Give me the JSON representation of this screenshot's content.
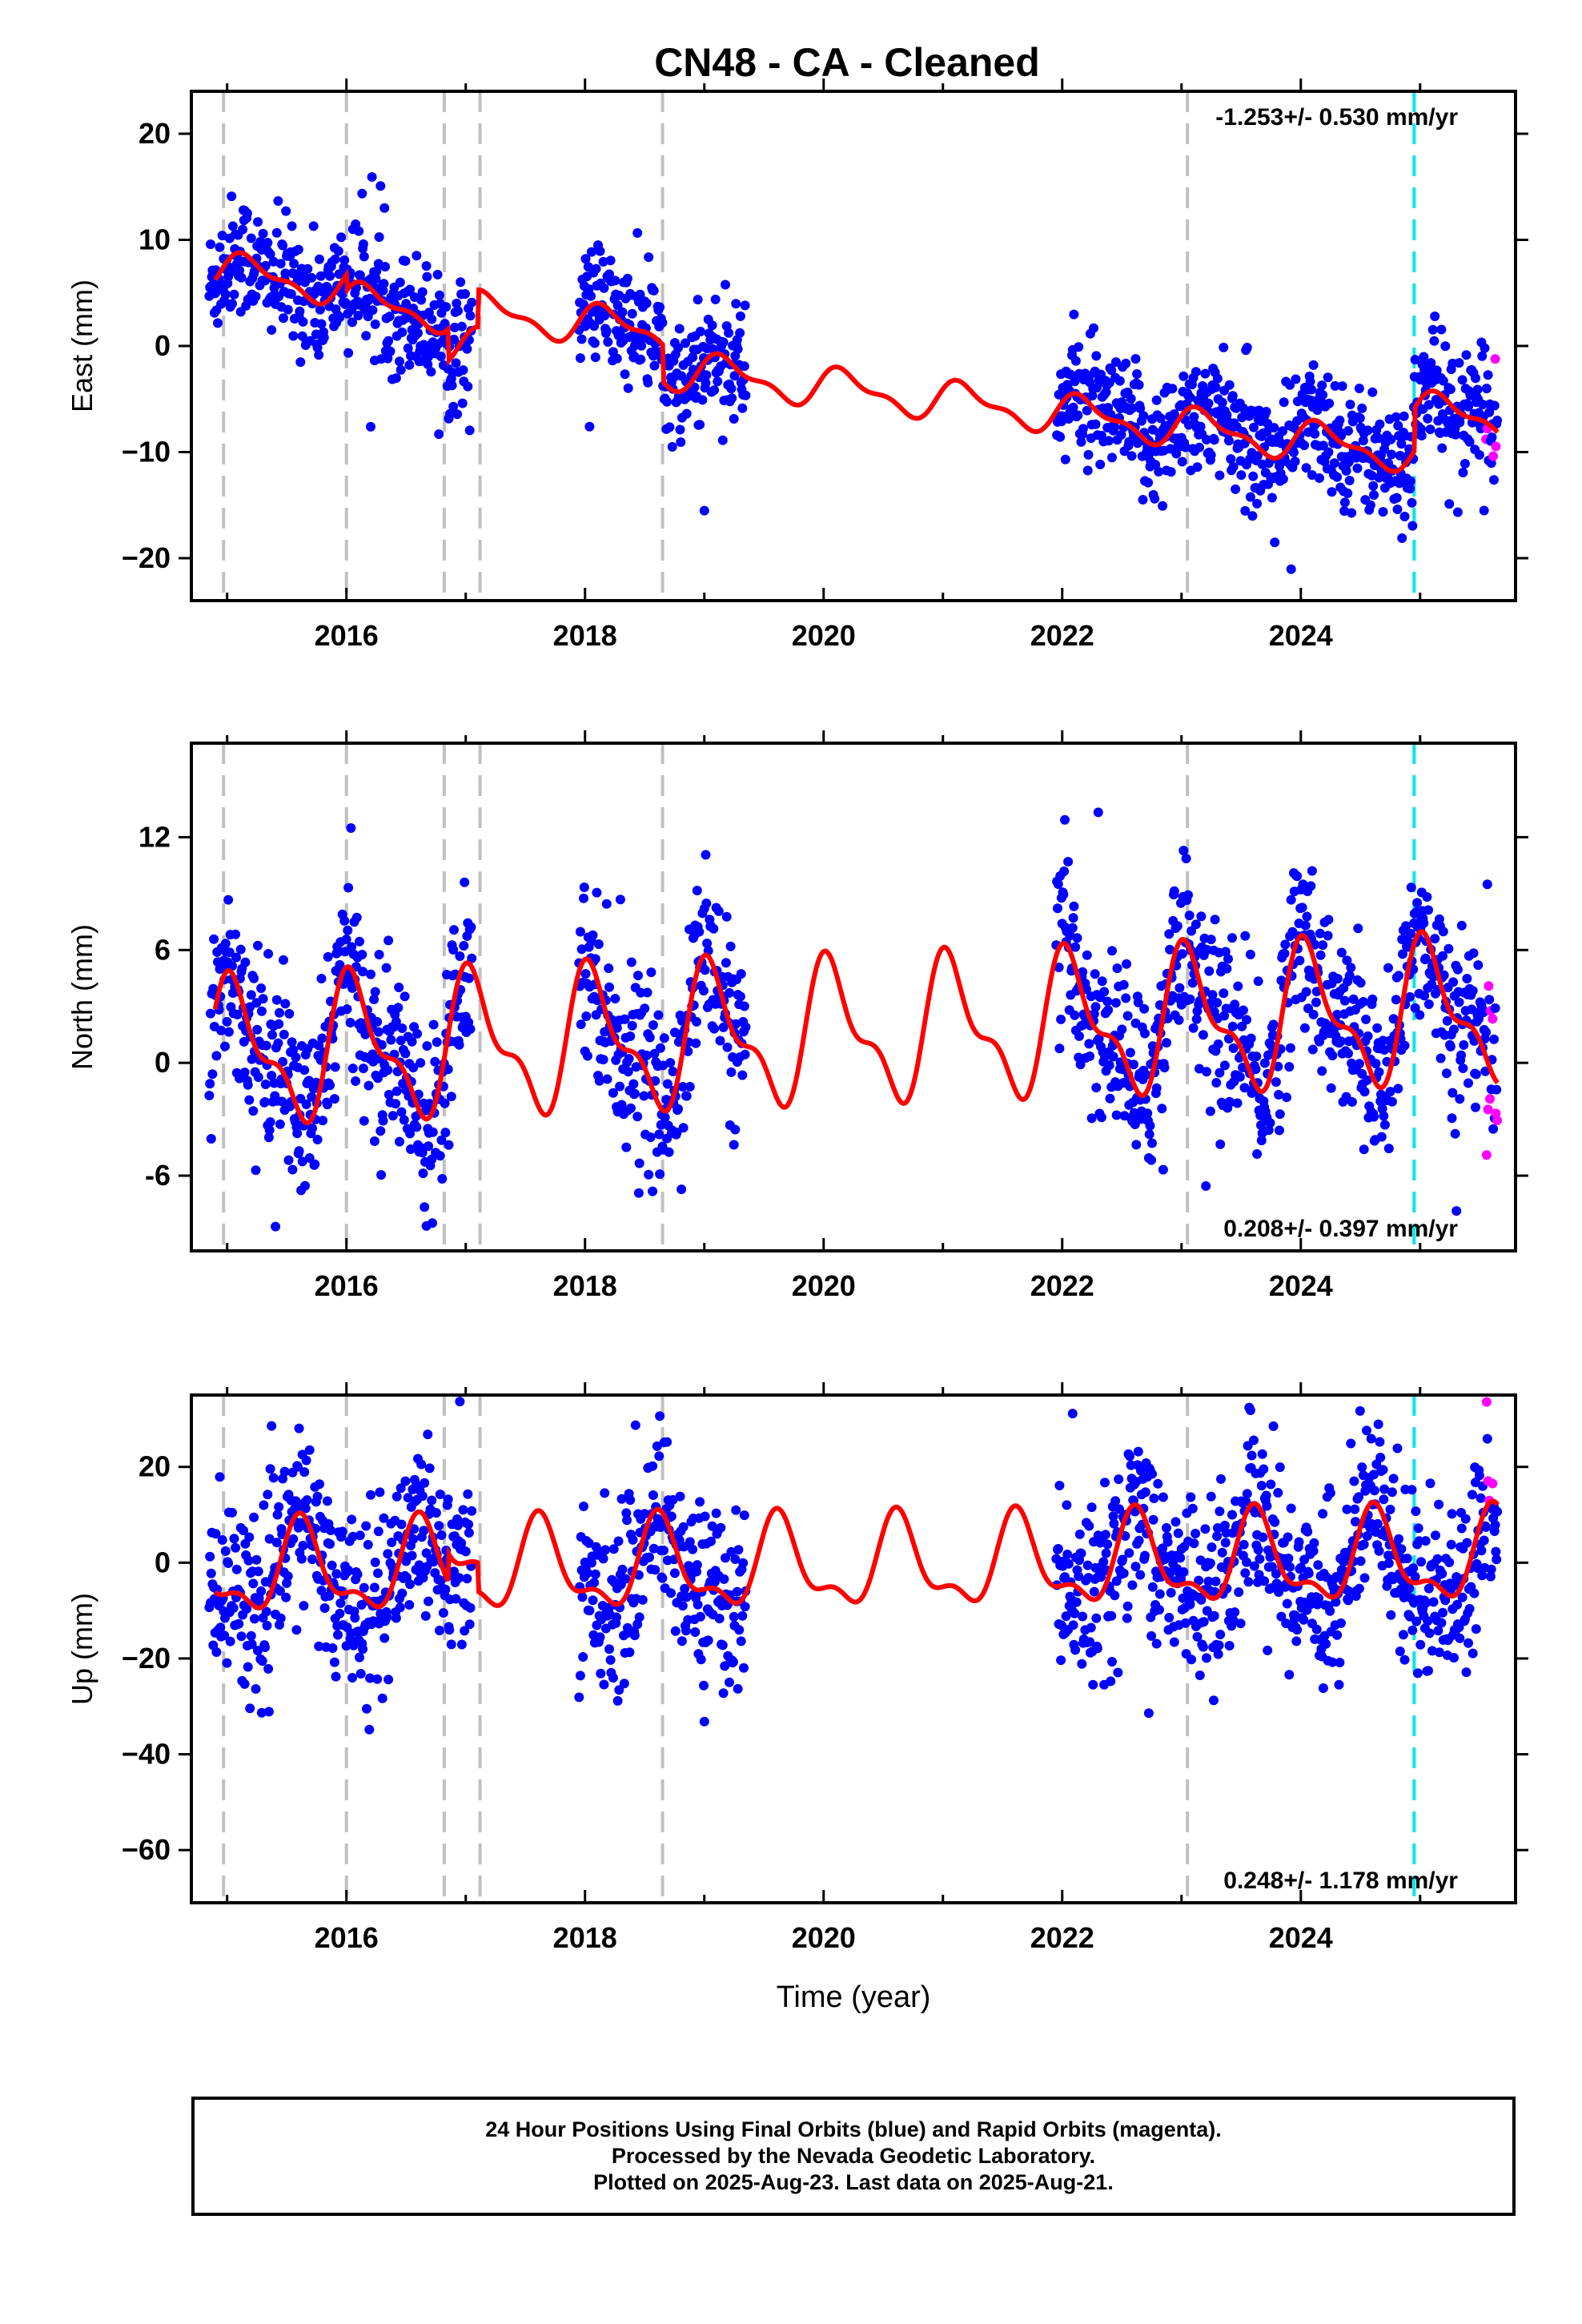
{
  "title": "CN48  - CA - Cleaned",
  "footer": {
    "line1": "24 Hour Positions Using Final Orbits (blue) and Rapid Orbits (magenta).",
    "line2": "Processed by the Nevada Geodetic Laboratory.",
    "line3": "Plotted on 2025-Aug-23. Last data on 2025-Aug-21."
  },
  "colors": {
    "final": "#0000ff",
    "rapid": "#ff00ff",
    "model": "#ff0000",
    "steps": "#c0c0c0",
    "equipment_step": "#00e5ee"
  },
  "chart_data": [
    {
      "type": "scatter",
      "component": "East",
      "ylabel": "East (mm)",
      "ylim": [
        -24,
        24
      ],
      "yticks": [
        -20,
        -10,
        0,
        10,
        20
      ],
      "ytick_labels": [
        "−20",
        "−10",
        "0",
        "10",
        "20"
      ],
      "rate_label": "-1.253+/- 0.530 mm/yr",
      "rate_position": "top-right",
      "xlim": [
        2014.7,
        2025.8
      ],
      "xticks": [
        2016,
        2018,
        2020,
        2022,
        2024
      ],
      "xtick_labels": [
        "2016",
        "2018",
        "2020",
        "2022",
        "2024"
      ],
      "xlabel": "",
      "trend": 7.0,
      "velocity": -1.253,
      "seasonal": {
        "amp": 1.6,
        "phase": 0.4
      },
      "offsets": [
        [
          2016.0,
          -1.5
        ],
        [
          2016.85,
          -3.0
        ],
        [
          2017.1,
          3.5
        ],
        [
          2018.65,
          -3.5
        ],
        [
          2024.95,
          4.0
        ]
      ],
      "noise": 2.8,
      "spans": [
        [
          2014.85,
          2017.05
        ],
        [
          2017.95,
          2019.35
        ],
        [
          2021.95,
          2025.65
        ]
      ],
      "rapid_start": 2025.55
    },
    {
      "type": "scatter",
      "component": "North",
      "ylabel": "North (mm)",
      "ylim": [
        -10,
        17
      ],
      "yticks": [
        -6,
        0,
        6,
        12
      ],
      "ytick_labels": [
        "-6",
        "0",
        "6",
        "12"
      ],
      "rate_label": "0.208+/- 0.397 mm/yr",
      "rate_position": "bottom-right",
      "xlim": [
        2014.7,
        2025.8
      ],
      "xticks": [
        2016,
        2018,
        2020,
        2022,
        2024
      ],
      "xtick_labels": [
        "2016",
        "2018",
        "2020",
        "2022",
        "2024"
      ],
      "xlabel": "",
      "trend": 0.5,
      "velocity": 0.208,
      "seasonal": {
        "amp": 3.3,
        "phase": 1.1
      },
      "offsets": [],
      "noise": 2.3,
      "spans": [
        [
          2014.85,
          2017.05
        ],
        [
          2017.95,
          2019.35
        ],
        [
          2021.95,
          2025.65
        ]
      ],
      "rapid_start": 2025.55
    },
    {
      "type": "scatter",
      "component": "Up",
      "ylabel": "Up (mm)",
      "ylim": [
        -71,
        35
      ],
      "yticks": [
        -60,
        -40,
        -20,
        0,
        20
      ],
      "ytick_labels": [
        "−60",
        "−40",
        "−20",
        "0",
        "20"
      ],
      "rate_label": "0.248+/- 1.178 mm/yr",
      "rate_position": "bottom-right",
      "xlim": [
        2014.7,
        2025.8
      ],
      "xticks": [
        2016,
        2018,
        2020,
        2022,
        2024
      ],
      "xtick_labels": [
        "2016",
        "2018",
        "2020",
        "2022",
        "2024"
      ],
      "xlabel": "Time (year)",
      "trend": -2.0,
      "velocity": 0.248,
      "seasonal": {
        "amp": 8.5,
        "phase": 3.9
      },
      "offsets": [
        [
          2016.85,
          6.0
        ],
        [
          2017.1,
          -6.0
        ]
      ],
      "noise": 9.0,
      "spans": [
        [
          2014.85,
          2017.05
        ],
        [
          2017.95,
          2019.35
        ],
        [
          2021.95,
          2025.65
        ]
      ],
      "rapid_start": 2025.55
    }
  ],
  "step_lines": [
    2014.97,
    2016.0,
    2016.82,
    2017.12,
    2018.65,
    2023.05
  ],
  "equipment_steps": [
    2024.95
  ]
}
